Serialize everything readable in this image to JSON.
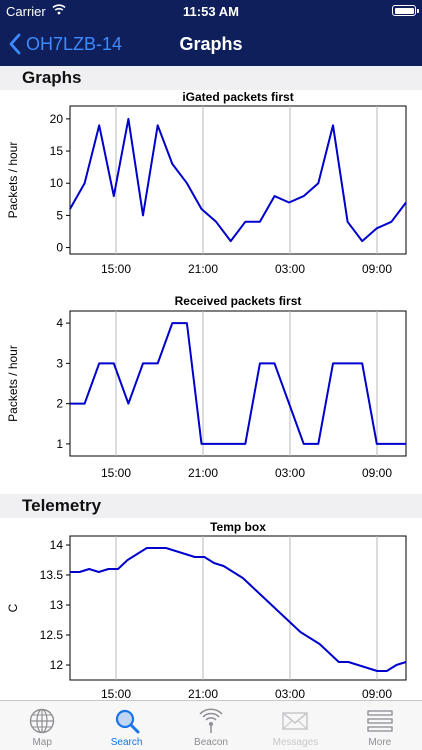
{
  "status_bar": {
    "carrier": "Carrier",
    "time": "11:53 AM"
  },
  "nav": {
    "back_label": "OH7LZB-14",
    "title": "Graphs"
  },
  "sections": {
    "graphs": "Graphs",
    "telemetry": "Telemetry"
  },
  "chart_data": [
    {
      "type": "line",
      "title": "iGated packets first",
      "ylabel": "Packets / hour",
      "xlabel": "",
      "x_ticks": [
        "15:00",
        "21:00",
        "03:00",
        "09:00"
      ],
      "y_ticks": [
        0,
        5,
        10,
        15,
        20
      ],
      "ylim": [
        -1,
        22
      ],
      "grid": true,
      "series": [
        {
          "color": "#0000cc",
          "values": [
            6,
            10,
            19,
            8,
            20,
            5,
            19,
            13,
            10,
            6,
            4,
            1,
            4,
            4,
            8,
            7,
            8,
            10,
            19,
            4,
            1,
            3,
            4,
            7
          ]
        }
      ]
    },
    {
      "type": "line",
      "title": "Received packets first",
      "ylabel": "Packets / hour",
      "xlabel": "",
      "x_ticks": [
        "15:00",
        "21:00",
        "03:00",
        "09:00"
      ],
      "y_ticks": [
        1,
        2,
        3,
        4
      ],
      "ylim": [
        0.7,
        4.3
      ],
      "grid": true,
      "series": [
        {
          "color": "#0000cc",
          "values": [
            2,
            2,
            3,
            3,
            2,
            3,
            3,
            4,
            4,
            1,
            1,
            1,
            1,
            3,
            3,
            2,
            1,
            1,
            3,
            3,
            3,
            1,
            1,
            1
          ]
        }
      ]
    },
    {
      "type": "line",
      "title": "Temp box",
      "ylabel": "C",
      "xlabel": "",
      "x_ticks": [
        "15:00",
        "21:00",
        "03:00",
        "09:00"
      ],
      "y_ticks": [
        12,
        12.5,
        13,
        13.5,
        14
      ],
      "ylim": [
        11.75,
        14.15
      ],
      "grid": true,
      "series": [
        {
          "color": "#0000cc",
          "values": [
            13.55,
            13.55,
            13.6,
            13.55,
            13.6,
            13.6,
            13.75,
            13.85,
            13.95,
            13.95,
            13.95,
            13.9,
            13.85,
            13.8,
            13.8,
            13.7,
            13.65,
            13.55,
            13.45,
            13.3,
            13.15,
            13.0,
            12.85,
            12.7,
            12.55,
            12.45,
            12.35,
            12.2,
            12.05,
            12.05,
            12.0,
            11.95,
            11.9,
            11.9,
            12.0,
            12.05
          ]
        }
      ]
    }
  ],
  "tabs": [
    {
      "label": "Map",
      "icon": "globe-icon",
      "state": "normal"
    },
    {
      "label": "Search",
      "icon": "search-icon",
      "state": "active"
    },
    {
      "label": "Beacon",
      "icon": "beacon-icon",
      "state": "normal"
    },
    {
      "label": "Messages",
      "icon": "envelope-icon",
      "state": "disabled"
    },
    {
      "label": "More",
      "icon": "more-icon",
      "state": "normal"
    }
  ]
}
